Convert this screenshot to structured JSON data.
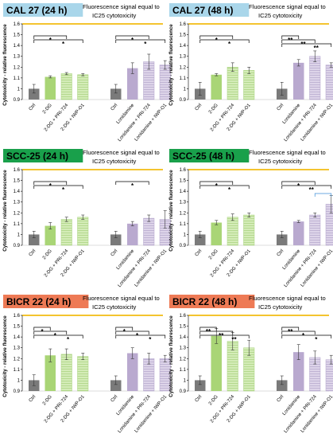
{
  "figure": {
    "fluor_note_line1": "Fluorescence signal equal to",
    "fluor_note_line2": "IC25 cytotoxicity",
    "colors": {
      "ctrl": "#7a7a7a",
      "dg": "#a9d576",
      "dg_light": "#d4ecb8",
      "lonid": "#b9a9cf",
      "lonid_light": "#ddd4e9",
      "threshold_line": "#f4c430",
      "bracket": "#000000",
      "bracket_blue": "#3d8fd8",
      "title_cal27": "#a9d6ea",
      "title_scc25": "#19a04b",
      "title_bicr22": "#ee7a55"
    }
  },
  "chart_data": [
    {
      "type": "bar",
      "title": "CAL 27 (24 h)",
      "title_color": "title_cal27",
      "ylabel": "Cytotoxicity - relative fluorescence",
      "ylim": [
        0.9,
        1.6
      ],
      "yticks": [
        "0.9",
        "1",
        "1.1",
        "1.2",
        "1.3",
        "1.4",
        "1.5",
        "1.6"
      ],
      "threshold": 1.6,
      "categories": [
        "Ctrl",
        "2-DG",
        "2-DG + PRI-724",
        "2-DG + IWP-O1",
        "Ctrl",
        "Lonidamine",
        "Lonidamine + PRI-724",
        "Lonidamine + IWP-O1"
      ],
      "values": [
        1.0,
        1.11,
        1.14,
        1.13,
        1.0,
        1.19,
        1.25,
        1.22
      ],
      "errors": [
        0.04,
        0.01,
        0.01,
        0.01,
        0.04,
        0.05,
        0.07,
        0.04
      ],
      "brackets": [
        {
          "from": 0,
          "to": 2,
          "label": "*",
          "level": 0,
          "color": "bracket"
        },
        {
          "from": 0,
          "to": 3,
          "label": "*",
          "level": 1,
          "color": "bracket"
        },
        {
          "from": 4,
          "to": 6,
          "label": "*",
          "level": 0,
          "color": "bracket"
        },
        {
          "from": 4,
          "to": 7,
          "label": "*",
          "level": 1,
          "color": "bracket"
        }
      ]
    },
    {
      "type": "bar",
      "title": "CAL 27 (48 h)",
      "title_color": "title_cal27",
      "ylabel": "Cytotoxicity - relative fluorescence",
      "ylim": [
        0.9,
        1.6
      ],
      "yticks": [
        "0.9",
        "1",
        "1.1",
        "1.2",
        "1.3",
        "1.4",
        "1.5",
        "1.6"
      ],
      "threshold": 1.6,
      "categories": [
        "Ctrl",
        "2-DG",
        "2-DG + PRI-724",
        "2-DG + IWP-O1",
        "Ctrl",
        "Lonidamine",
        "Lonidamine + PRI-724",
        "Lonidamine + IWP-O1"
      ],
      "values": [
        1.0,
        1.13,
        1.2,
        1.17,
        1.0,
        1.24,
        1.3,
        1.22
      ],
      "errors": [
        0.06,
        0.01,
        0.04,
        0.03,
        0.06,
        0.03,
        0.05,
        0.02
      ],
      "brackets": [
        {
          "from": 0,
          "to": 2,
          "label": "*",
          "level": 0,
          "color": "bracket"
        },
        {
          "from": 0,
          "to": 3,
          "label": "*",
          "level": 1,
          "color": "bracket"
        },
        {
          "from": 4,
          "to": 5,
          "label": "**",
          "level": 0,
          "color": "bracket"
        },
        {
          "from": 4,
          "to": 6,
          "label": "**",
          "level": 1,
          "color": "bracket"
        },
        {
          "from": 4,
          "to": 7,
          "label": "**",
          "level": 2,
          "color": "bracket"
        }
      ]
    },
    {
      "type": "bar",
      "title": "SCC-25 (24 h)",
      "title_color": "title_scc25",
      "ylabel": "Cytotoxicity - relative fluorescence",
      "ylim": [
        0.9,
        1.6
      ],
      "yticks": [
        "0.9",
        "1",
        "1.1",
        "1.2",
        "1.3",
        "1.4",
        "1.5",
        "1.6"
      ],
      "threshold": 1.6,
      "categories": [
        "Ctrl",
        "2-DG",
        "2-DG + PRI-724",
        "2-DG + IWP-O1",
        "Ctrl",
        "Lonidamine",
        "Lonidamine + PRI-724",
        "Lonidamine + IWP-O1"
      ],
      "values": [
        1.0,
        1.08,
        1.14,
        1.16,
        1.0,
        1.1,
        1.15,
        1.14
      ],
      "errors": [
        0.03,
        0.03,
        0.02,
        0.02,
        0.03,
        0.02,
        0.03,
        0.08
      ],
      "brackets": [
        {
          "from": 0,
          "to": 2,
          "label": "*",
          "level": 0,
          "color": "bracket"
        },
        {
          "from": 0,
          "to": 3,
          "label": "*",
          "level": 1,
          "color": "bracket"
        },
        {
          "from": 4,
          "to": 6,
          "label": "*",
          "level": 0,
          "color": "bracket"
        }
      ]
    },
    {
      "type": "bar",
      "title": "SCC-25 (48 h)",
      "title_color": "title_scc25",
      "ylabel": "Cytotoxicity - relative fluorescence",
      "ylim": [
        0.9,
        1.6
      ],
      "yticks": [
        "0.9",
        "1",
        "1.1",
        "1.2",
        "1.3",
        "1.4",
        "1.5",
        "1.6"
      ],
      "threshold": 1.6,
      "categories": [
        "Ctrl",
        "2-DG",
        "2-DG + PRI-724",
        "2-DG + IWP-O1",
        "Ctrl",
        "Lonidamine",
        "Lonidamine + PRI-724",
        "Lonidamine + IWP-O1"
      ],
      "values": [
        1.0,
        1.11,
        1.16,
        1.18,
        1.0,
        1.12,
        1.18,
        1.28
      ],
      "errors": [
        0.03,
        0.02,
        0.03,
        0.02,
        0.03,
        0.01,
        0.02,
        0.08
      ],
      "brackets": [
        {
          "from": 0,
          "to": 2,
          "label": "*",
          "level": 0,
          "color": "bracket"
        },
        {
          "from": 0,
          "to": 3,
          "label": "*",
          "level": 1,
          "color": "bracket"
        },
        {
          "from": 4,
          "to": 6,
          "label": "*",
          "level": 0,
          "color": "bracket"
        },
        {
          "from": 4,
          "to": 7,
          "label": "**",
          "level": 1,
          "color": "bracket"
        },
        {
          "from": 6,
          "to": 7,
          "label": "*",
          "level": 3,
          "color": "bracket_blue"
        }
      ]
    },
    {
      "type": "bar",
      "title": "BICR 22 (24 h)",
      "title_color": "title_bicr22",
      "ylabel": "Cytotoxicity - relative fluorescence",
      "ylim": [
        0.9,
        1.6
      ],
      "yticks": [
        "0.9",
        "1",
        "1.1",
        "1.2",
        "1.3",
        "1.4",
        "1.5",
        "1.6"
      ],
      "threshold": 1.6,
      "categories": [
        "Ctrl",
        "2-DG",
        "2-DG + PRI-724",
        "2-DG + IWP-O1",
        "Ctrl",
        "Lonidamine",
        "Lonidamine + PRI-724",
        "Lonidamine + IWP-O1"
      ],
      "values": [
        1.0,
        1.23,
        1.24,
        1.22,
        1.0,
        1.25,
        1.2,
        1.2
      ],
      "errors": [
        0.05,
        0.06,
        0.05,
        0.03,
        0.04,
        0.05,
        0.05,
        0.03
      ],
      "brackets": [
        {
          "from": 0,
          "to": 1,
          "label": "*",
          "level": 0,
          "color": "bracket"
        },
        {
          "from": 0,
          "to": 2,
          "label": "*",
          "level": 1,
          "color": "bracket"
        },
        {
          "from": 0,
          "to": 3,
          "label": "*",
          "level": 2,
          "color": "bracket"
        },
        {
          "from": 4,
          "to": 5,
          "label": "*",
          "level": 0,
          "color": "bracket"
        },
        {
          "from": 4,
          "to": 6,
          "label": "*",
          "level": 1,
          "color": "bracket"
        },
        {
          "from": 4,
          "to": 7,
          "label": "*",
          "level": 2,
          "color": "bracket"
        }
      ]
    },
    {
      "type": "bar",
      "title": "BICR 22 (48 h)",
      "title_color": "title_bicr22",
      "ylabel": "Cytotoxicity - relative fluorescence",
      "ylim": [
        0.9,
        1.6
      ],
      "yticks": [
        "0.9",
        "1",
        "1.1",
        "1.2",
        "1.3",
        "1.4",
        "1.5",
        "1.6"
      ],
      "threshold": 1.6,
      "categories": [
        "Ctrl",
        "2-DG",
        "2-DG + PRI-724",
        "2-DG + IWP-O1",
        "Ctrl",
        "Lonidamine",
        "Lonidamine + PRI-724",
        "Lonidamine + IWP-O1"
      ],
      "values": [
        1.0,
        1.41,
        1.36,
        1.3,
        1.0,
        1.26,
        1.21,
        1.19
      ],
      "errors": [
        0.04,
        0.07,
        0.08,
        0.07,
        0.04,
        0.07,
        0.06,
        0.04
      ],
      "brackets": [
        {
          "from": 0,
          "to": 1,
          "label": "**",
          "level": 0,
          "color": "bracket"
        },
        {
          "from": 0,
          "to": 2,
          "label": "**",
          "level": 1,
          "color": "bracket"
        },
        {
          "from": 0,
          "to": 3,
          "label": "**",
          "level": 2,
          "color": "bracket"
        },
        {
          "from": 4,
          "to": 5,
          "label": "**",
          "level": 0,
          "color": "bracket"
        },
        {
          "from": 4,
          "to": 6,
          "label": "*",
          "level": 1,
          "color": "bracket"
        },
        {
          "from": 4,
          "to": 7,
          "label": "*",
          "level": 2,
          "color": "bracket"
        }
      ]
    }
  ]
}
